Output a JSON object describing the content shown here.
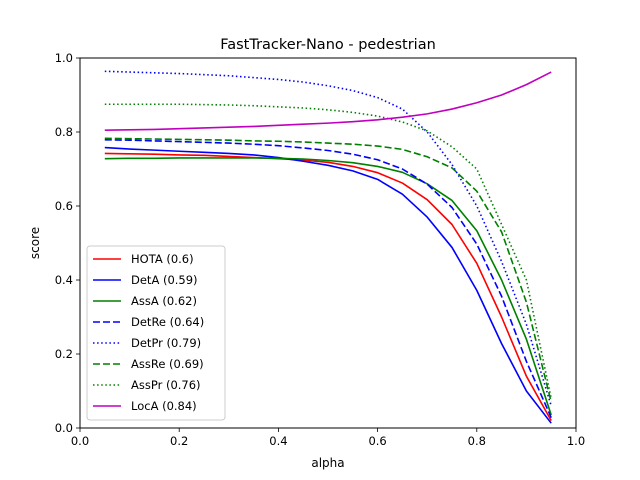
{
  "chart_data": {
    "type": "line",
    "title": "FastTracker-Nano - pedestrian",
    "xlabel": "alpha",
    "ylabel": "score",
    "xlim": [
      0.0,
      1.0
    ],
    "ylim": [
      0.0,
      1.0
    ],
    "xticks": [
      "0.0",
      "0.2",
      "0.4",
      "0.6",
      "0.8",
      "1.0"
    ],
    "yticks": [
      "0.0",
      "0.2",
      "0.4",
      "0.6",
      "0.8",
      "1.0"
    ],
    "grid": false,
    "legend_position": "lower-left",
    "x": [
      0.05,
      0.1,
      0.15,
      0.2,
      0.25,
      0.3,
      0.35,
      0.4,
      0.45,
      0.5,
      0.55,
      0.6,
      0.65,
      0.7,
      0.75,
      0.8,
      0.85,
      0.9,
      0.95
    ],
    "series": [
      {
        "name": "HOTA (0.6)",
        "color": "#ff0000",
        "style": "solid",
        "values": [
          0.742,
          0.741,
          0.74,
          0.738,
          0.737,
          0.734,
          0.731,
          0.728,
          0.724,
          0.718,
          0.707,
          0.69,
          0.662,
          0.617,
          0.55,
          0.445,
          0.3,
          0.14,
          0.02
        ]
      },
      {
        "name": "DetA (0.59)",
        "color": "#0000ff",
        "style": "solid",
        "values": [
          0.758,
          0.754,
          0.751,
          0.748,
          0.745,
          0.742,
          0.738,
          0.731,
          0.721,
          0.71,
          0.695,
          0.672,
          0.632,
          0.57,
          0.488,
          0.372,
          0.228,
          0.1,
          0.013
        ]
      },
      {
        "name": "AssA (0.62)",
        "color": "#008000",
        "style": "solid",
        "values": [
          0.728,
          0.729,
          0.729,
          0.73,
          0.73,
          0.73,
          0.73,
          0.729,
          0.727,
          0.723,
          0.717,
          0.707,
          0.691,
          0.66,
          0.615,
          0.533,
          0.4,
          0.24,
          0.035
        ]
      },
      {
        "name": "DetRe (0.64)",
        "color": "#0000ff",
        "style": "dashed",
        "values": [
          0.779,
          0.778,
          0.776,
          0.774,
          0.772,
          0.77,
          0.767,
          0.763,
          0.757,
          0.75,
          0.74,
          0.725,
          0.7,
          0.659,
          0.596,
          0.497,
          0.356,
          0.18,
          0.028
        ]
      },
      {
        "name": "DetPr (0.79)",
        "color": "#0000ff",
        "style": "dotted",
        "values": [
          0.964,
          0.962,
          0.96,
          0.958,
          0.955,
          0.952,
          0.947,
          0.942,
          0.935,
          0.925,
          0.912,
          0.893,
          0.862,
          0.8,
          0.712,
          0.6,
          0.45,
          0.28,
          0.06
        ]
      },
      {
        "name": "AssRe (0.69)",
        "color": "#008000",
        "style": "dashed",
        "values": [
          0.783,
          0.782,
          0.781,
          0.78,
          0.779,
          0.778,
          0.776,
          0.775,
          0.773,
          0.77,
          0.767,
          0.762,
          0.753,
          0.733,
          0.703,
          0.64,
          0.53,
          0.34,
          0.07
        ]
      },
      {
        "name": "AssPr (0.76)",
        "color": "#008000",
        "style": "dotted",
        "values": [
          0.875,
          0.875,
          0.875,
          0.875,
          0.874,
          0.873,
          0.871,
          0.868,
          0.865,
          0.86,
          0.853,
          0.843,
          0.827,
          0.803,
          0.76,
          0.7,
          0.55,
          0.4,
          0.08
        ]
      },
      {
        "name": "LocA (0.84)",
        "color": "#bf00bf",
        "style": "solid",
        "values": [
          0.805,
          0.806,
          0.807,
          0.809,
          0.811,
          0.813,
          0.815,
          0.818,
          0.821,
          0.824,
          0.828,
          0.833,
          0.84,
          0.849,
          0.862,
          0.879,
          0.9,
          0.928,
          0.962
        ]
      }
    ]
  }
}
